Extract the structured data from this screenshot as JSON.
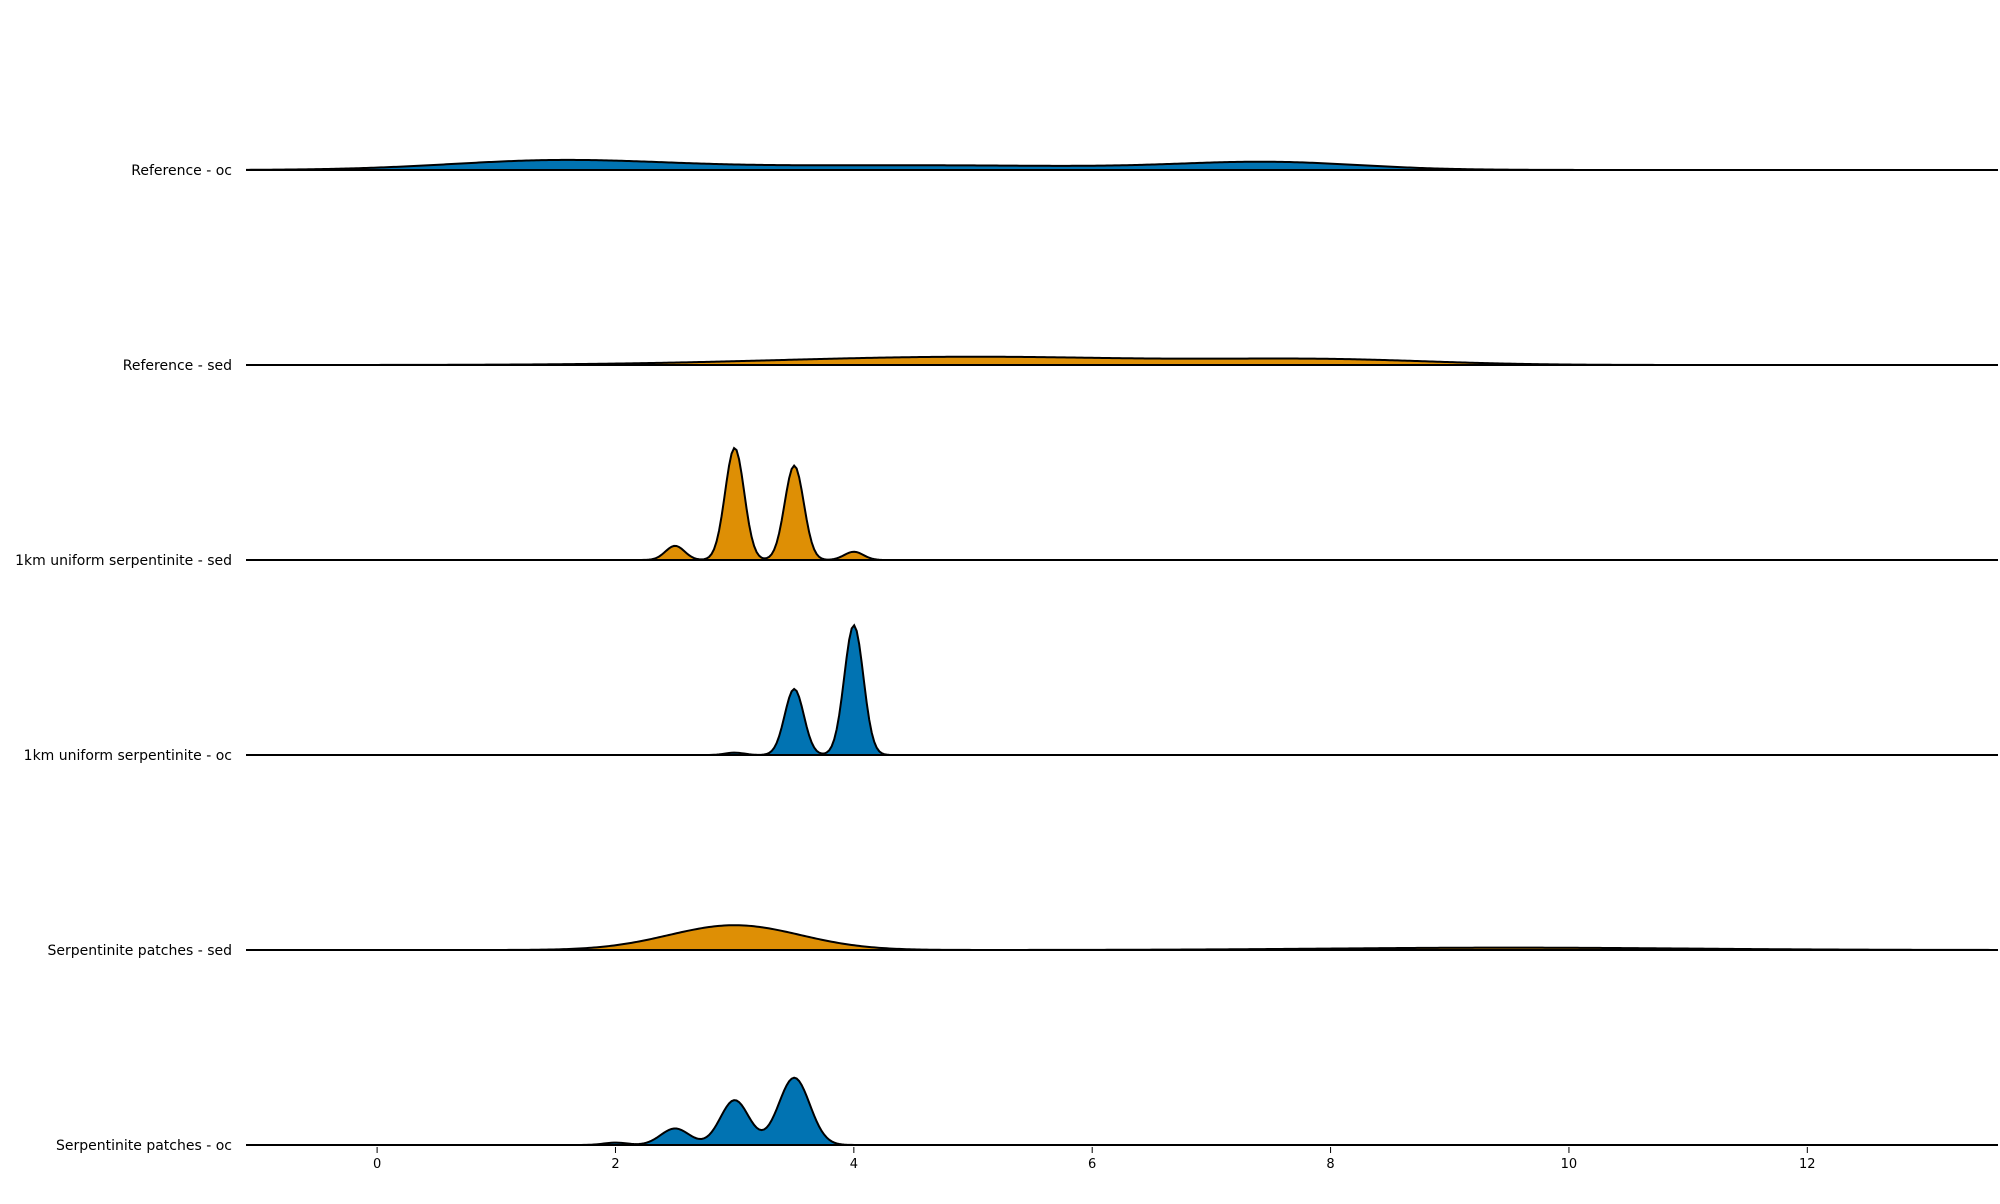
{
  "chart_data": {
    "type": "ridgeline",
    "title": "",
    "xlabel": "",
    "ylabel": "",
    "xlim": [
      -1.1,
      13.6
    ],
    "grid": false,
    "legend": "none",
    "x_ticks": [
      0,
      2,
      4,
      6,
      8,
      10,
      12
    ],
    "x_tick_labels": [
      "0",
      "2",
      "4",
      "6",
      "8",
      "10",
      "12"
    ],
    "fill_colors": {
      "oc": "#0173b2",
      "sed": "#de8f05"
    },
    "outline_color": "#000000",
    "density_max_display": 1.0,
    "series": [
      {
        "name": "Reference - oc",
        "color": "#0173b2",
        "components": [
          {
            "mean": 1.5,
            "sd": 0.9,
            "amp": 0.075
          },
          {
            "mean": 4.5,
            "sd": 1.8,
            "amp": 0.04
          },
          {
            "mean": 7.5,
            "sd": 0.75,
            "amp": 0.06
          }
        ]
      },
      {
        "name": "Reference - sed",
        "color": "#de8f05",
        "components": [
          {
            "mean": 5.0,
            "sd": 1.6,
            "amp": 0.07
          },
          {
            "mean": 8.0,
            "sd": 0.9,
            "amp": 0.04
          }
        ]
      },
      {
        "name": "1km uniform serpentinite - sed",
        "color": "#de8f05",
        "components": [
          {
            "mean": 2.5,
            "sd": 0.08,
            "amp": 0.12
          },
          {
            "mean": 3.0,
            "sd": 0.08,
            "amp": 0.95
          },
          {
            "mean": 3.5,
            "sd": 0.08,
            "amp": 0.8
          },
          {
            "mean": 4.0,
            "sd": 0.08,
            "amp": 0.07
          }
        ]
      },
      {
        "name": "1km uniform serpentinite - oc",
        "color": "#0173b2",
        "components": [
          {
            "mean": 3.0,
            "sd": 0.08,
            "amp": 0.02
          },
          {
            "mean": 3.5,
            "sd": 0.08,
            "amp": 0.56
          },
          {
            "mean": 4.0,
            "sd": 0.08,
            "amp": 1.1
          }
        ]
      },
      {
        "name": "Serpentinite patches - sed",
        "color": "#de8f05",
        "components": [
          {
            "mean": 3.0,
            "sd": 0.55,
            "amp": 0.21
          },
          {
            "mean": 9.5,
            "sd": 1.5,
            "amp": 0.02
          }
        ]
      },
      {
        "name": "Serpentinite patches - oc",
        "color": "#0173b2",
        "components": [
          {
            "mean": 2.0,
            "sd": 0.1,
            "amp": 0.02
          },
          {
            "mean": 2.5,
            "sd": 0.12,
            "amp": 0.14
          },
          {
            "mean": 3.0,
            "sd": 0.12,
            "amp": 0.38
          },
          {
            "mean": 3.5,
            "sd": 0.13,
            "amp": 0.57
          }
        ]
      }
    ]
  }
}
